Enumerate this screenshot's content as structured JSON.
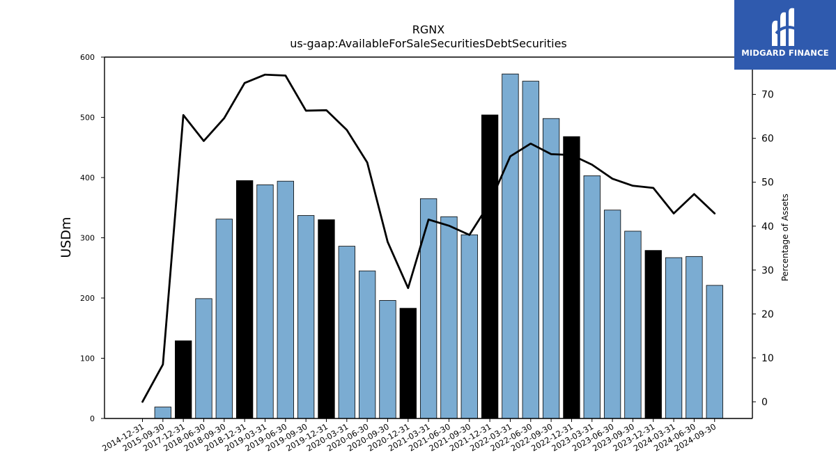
{
  "chart_data": {
    "type": "bar",
    "title": "RGNX",
    "subtitle": "us-gaap:AvailableForSaleSecuritiesDebtSecurities",
    "ylabel": "USDm",
    "y2label": "Percentage of Assets",
    "ylim": [
      0,
      600
    ],
    "y2lim": [
      -3.8,
      78.5
    ],
    "yticks": [
      0,
      100,
      200,
      300,
      400,
      500,
      600
    ],
    "y2ticks": [
      0,
      10,
      20,
      30,
      40,
      50,
      60,
      70
    ],
    "categories": [
      "2014-12-31",
      "2015-09-30",
      "2017-12-31",
      "2018-06-30",
      "2018-09-30",
      "2018-12-31",
      "2019-03-31",
      "2019-06-30",
      "2019-09-30",
      "2019-12-31",
      "2020-03-31",
      "2020-06-30",
      "2020-09-30",
      "2020-12-31",
      "2021-03-31",
      "2021-06-30",
      "2021-09-30",
      "2021-12-31",
      "2022-03-31",
      "2022-06-30",
      "2022-09-30",
      "2022-12-31",
      "2023-03-31",
      "2023-06-30",
      "2023-09-30",
      "2023-12-31",
      "2024-03-31",
      "2024-06-30",
      "2024-09-30"
    ],
    "series": [
      {
        "type": "bar",
        "values": [
          0,
          19,
          129,
          199,
          331,
          395,
          388,
          394,
          337,
          330,
          286,
          245,
          196,
          183,
          365,
          335,
          305,
          504,
          572,
          560,
          498,
          468,
          403,
          346,
          311,
          279,
          267,
          269,
          221
        ]
      },
      {
        "type": "line",
        "axis": "right",
        "values": [
          0,
          8.5,
          65.3,
          59.4,
          64.6,
          72.6,
          74.5,
          74.3,
          66.3,
          66.4,
          61.9,
          54.5,
          36.4,
          25.9,
          41.5,
          40.1,
          38.0,
          45.3,
          55.9,
          58.8,
          56.4,
          56.2,
          54.0,
          50.8,
          49.2,
          48.7,
          42.9,
          47.3,
          42.9
        ]
      }
    ],
    "bar_highlight": [
      false,
      false,
      true,
      false,
      false,
      true,
      false,
      false,
      false,
      true,
      false,
      false,
      false,
      true,
      false,
      false,
      false,
      true,
      false,
      false,
      false,
      true,
      false,
      false,
      false,
      true,
      false,
      false,
      false
    ],
    "colors": {
      "bar": "#7bacd2",
      "bar_highlight": "#000000",
      "line": "#000000",
      "bar_edge": "#000000"
    },
    "grid": false,
    "legend": "none"
  },
  "logo": {
    "text": "MIDGARD FINANCE",
    "background": "#2f5aae"
  }
}
